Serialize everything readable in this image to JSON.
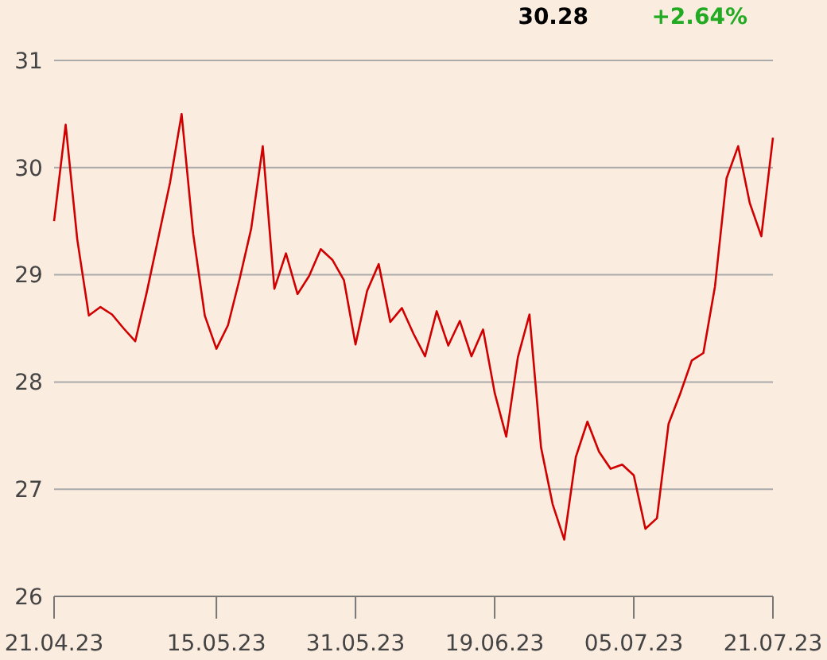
{
  "chart_data": {
    "type": "line",
    "annotations": [
      "30.28",
      "+2.64%"
    ],
    "categories": [
      "21.04.23",
      null,
      null,
      null,
      null,
      null,
      null,
      null,
      null,
      null,
      null,
      null,
      null,
      null,
      "15.05.23",
      null,
      null,
      null,
      null,
      null,
      null,
      null,
      null,
      null,
      null,
      null,
      "31.05.23",
      null,
      null,
      null,
      null,
      null,
      null,
      null,
      null,
      null,
      null,
      null,
      "19.06.23",
      null,
      null,
      null,
      null,
      null,
      null,
      null,
      null,
      null,
      null,
      null,
      "05.07.23",
      null,
      null,
      null,
      null,
      null,
      null,
      null,
      null,
      null,
      null,
      null,
      "21.07.23"
    ],
    "ylim": [
      26,
      31
    ],
    "yticks": [
      26,
      27,
      28,
      29,
      30,
      31
    ],
    "grid": "y",
    "series": [
      {
        "color": "#d00000",
        "values": [
          29.5,
          30.4,
          29.33,
          28.62,
          28.7,
          28.63,
          28.5,
          28.38,
          28.84,
          29.35,
          29.86,
          30.5,
          29.38,
          28.62,
          28.31,
          28.53,
          28.96,
          29.43,
          30.2,
          28.87,
          29.2,
          28.82,
          28.99,
          29.24,
          29.14,
          28.95,
          28.35,
          28.85,
          29.1,
          28.56,
          28.69,
          28.45,
          28.24,
          28.66,
          28.34,
          28.57,
          28.24,
          28.49,
          27.9,
          27.49,
          28.23,
          28.63,
          27.39,
          26.86,
          26.53,
          27.3,
          27.63,
          27.35,
          27.19,
          27.23,
          27.13,
          26.63,
          26.73,
          27.61,
          27.89,
          28.2,
          28.27,
          28.89,
          29.9,
          30.2,
          29.67,
          29.36,
          30.28
        ]
      }
    ]
  }
}
